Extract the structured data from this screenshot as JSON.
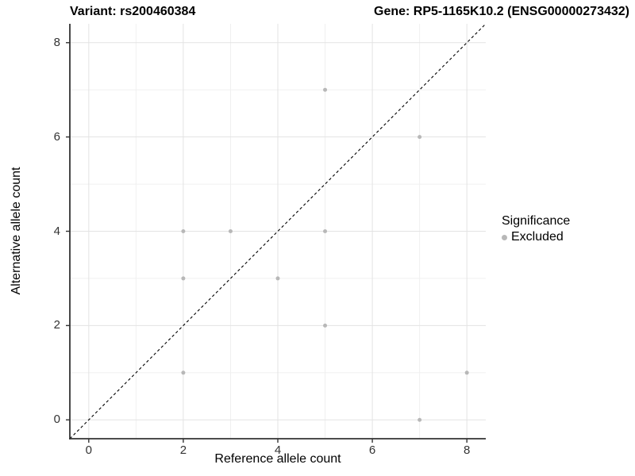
{
  "chart_data": {
    "type": "scatter",
    "titles": {
      "left": "Variant: rs200460384",
      "right": "Gene: RP5-1165K10.2 (ENSG00000273432)"
    },
    "xlabel": "Reference allele count",
    "ylabel": "Alternative allele count",
    "xlim": [
      -0.4,
      8.4
    ],
    "ylim": [
      -0.4,
      8.4
    ],
    "x_ticks": [
      0,
      2,
      4,
      6,
      8
    ],
    "y_ticks": [
      0,
      2,
      4,
      6,
      8
    ],
    "grid": {
      "major": [
        0,
        2,
        4,
        6,
        8
      ],
      "minor": [
        1,
        3,
        5,
        7
      ],
      "major_color": "#e3e3e3",
      "minor_color": "#f0f0f0"
    },
    "identity_line": {
      "equation": "y = x",
      "style": "dashed",
      "color": "#000000"
    },
    "series": [
      {
        "name": "Excluded",
        "color": "#b8b8b8",
        "points": [
          [
            5,
            7
          ],
          [
            7,
            6
          ],
          [
            2,
            4
          ],
          [
            3,
            4
          ],
          [
            5,
            4
          ],
          [
            2,
            3
          ],
          [
            4,
            3
          ],
          [
            5,
            2
          ],
          [
            2,
            1
          ],
          [
            8,
            1
          ],
          [
            7,
            0
          ]
        ]
      }
    ],
    "legend": {
      "title": "Significance",
      "position": "right",
      "items": [
        {
          "label": "Excluded",
          "color": "#b8b8b8"
        }
      ]
    },
    "axis_color": "#333333"
  }
}
